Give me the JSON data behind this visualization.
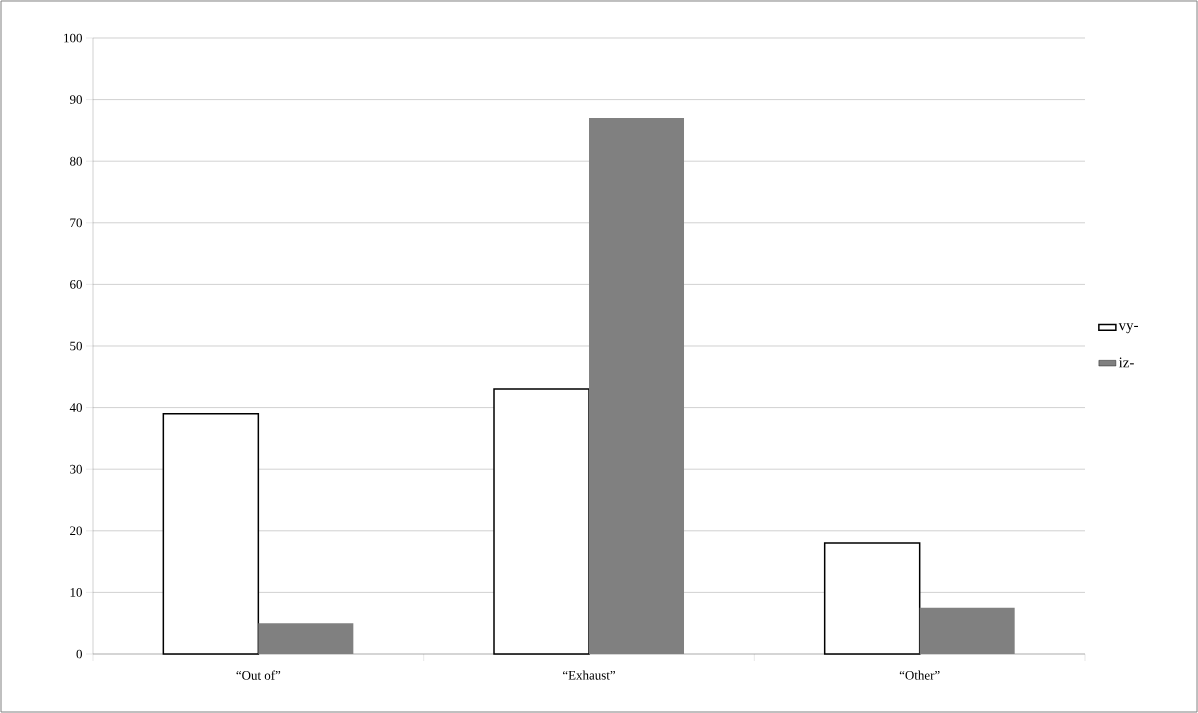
{
  "chart_data": {
    "type": "bar",
    "categories": [
      "“Out of”",
      "“Exhaust”",
      "“Other”"
    ],
    "series": [
      {
        "name": "vy-",
        "color": "#ffffff",
        "values": [
          39,
          43,
          18
        ]
      },
      {
        "name": "iz-",
        "color": "#808080",
        "values": [
          5,
          87,
          7.5
        ]
      }
    ],
    "ylim": [
      0,
      100
    ],
    "yticks": [
      0,
      10,
      20,
      30,
      40,
      50,
      60,
      70,
      80,
      90,
      100
    ],
    "grid": "y",
    "legend": "right"
  }
}
